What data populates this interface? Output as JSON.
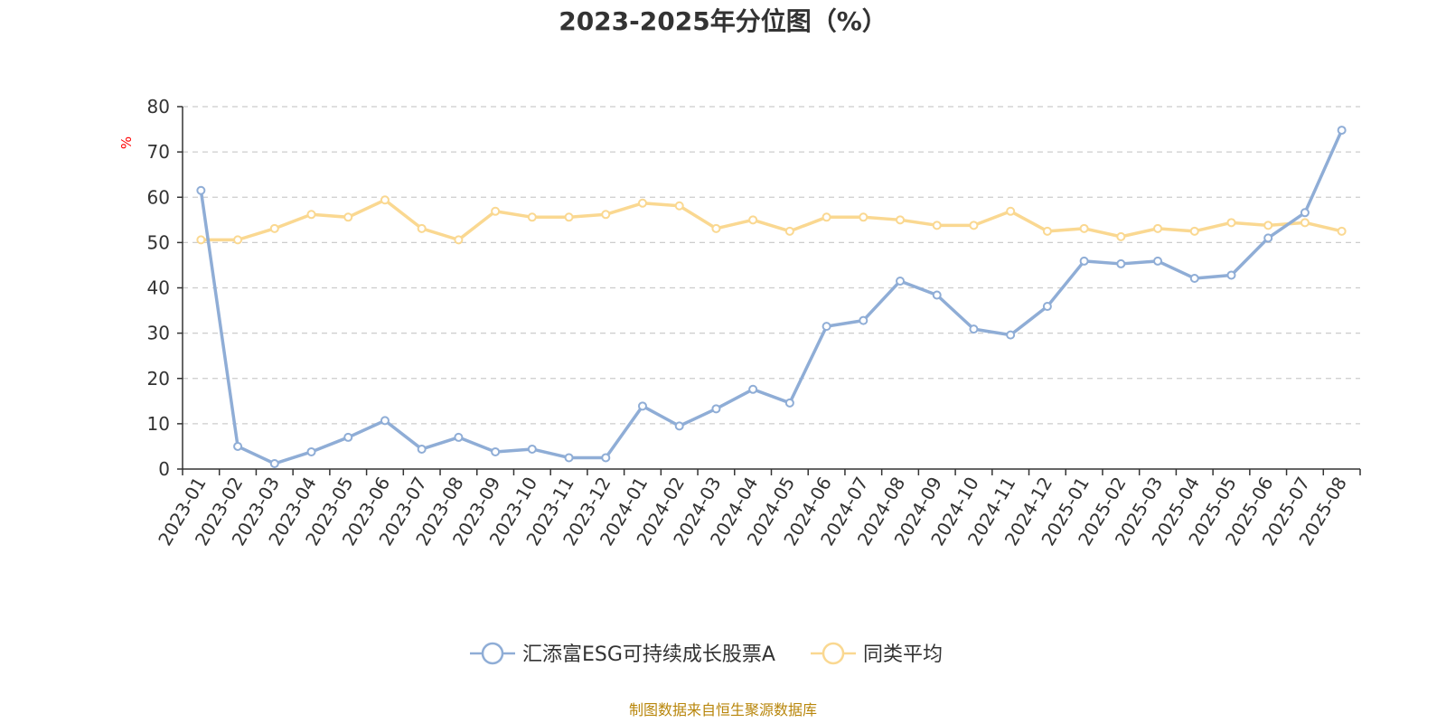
{
  "chart_data": {
    "type": "line",
    "title": "2023-2025年分位图（%）",
    "ylabel": "%",
    "ylim": [
      0,
      80
    ],
    "yticks": [
      "0",
      "10",
      "20",
      "30",
      "40",
      "50",
      "60",
      "70",
      "80"
    ],
    "grid": true,
    "legend_position": "bottom-center",
    "categories": [
      "2023-01",
      "2023-02",
      "2023-03",
      "2023-04",
      "2023-05",
      "2023-06",
      "2023-07",
      "2023-08",
      "2023-09",
      "2023-10",
      "2023-11",
      "2023-12",
      "2024-01",
      "2024-02",
      "2024-03",
      "2024-04",
      "2024-05",
      "2024-06",
      "2024-07",
      "2024-08",
      "2024-09",
      "2024-10",
      "2024-11",
      "2024-12",
      "2025-01",
      "2025-02",
      "2025-03",
      "2025-04",
      "2025-05",
      "2025-06",
      "2025-07",
      "2025-08"
    ],
    "series": [
      {
        "name": "汇添富ESG可持续成长股票A",
        "color": "#8fadd6",
        "values": [
          61.5,
          5.0,
          1.2,
          3.8,
          7.0,
          10.7,
          4.4,
          7.0,
          3.8,
          4.4,
          2.5,
          2.5,
          13.9,
          9.5,
          13.3,
          17.6,
          14.6,
          31.5,
          32.8,
          41.5,
          38.4,
          30.9,
          29.6,
          35.9,
          45.9,
          45.3,
          45.9,
          42.1,
          42.8,
          51.0,
          56.6,
          74.8
        ]
      },
      {
        "name": "同类平均",
        "color": "#fad891",
        "values": [
          50.6,
          50.6,
          53.1,
          56.2,
          55.6,
          59.4,
          53.1,
          50.6,
          56.9,
          55.6,
          55.6,
          56.2,
          58.7,
          58.1,
          53.1,
          55.0,
          52.5,
          55.6,
          55.6,
          55.0,
          53.8,
          53.8,
          56.9,
          52.5,
          53.1,
          51.3,
          53.1,
          52.5,
          54.4,
          53.8,
          54.4,
          52.5
        ]
      }
    ],
    "axis_color": "#333333",
    "grid_color": "#cccccc",
    "unit_color": "#ff0000"
  },
  "footer": {
    "source": "制图数据来自恒生聚源数据库",
    "source_color": "#b8860b"
  }
}
